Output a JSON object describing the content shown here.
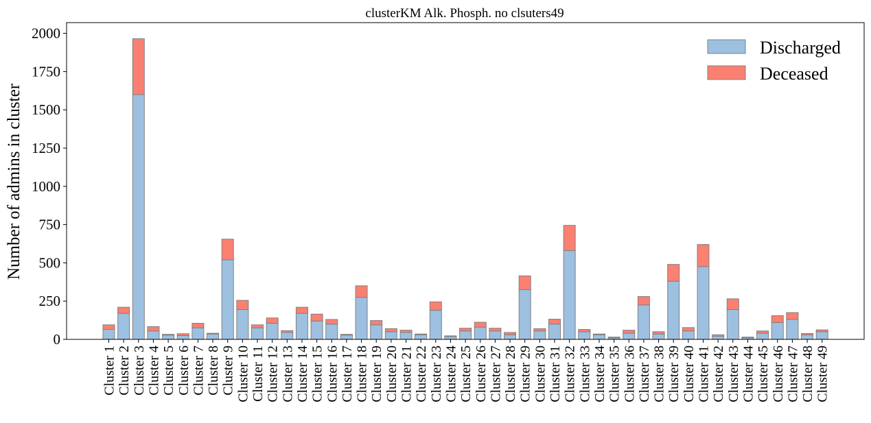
{
  "chart_data": {
    "type": "bar",
    "stacked": true,
    "title": "clusterKM Alk. Phosph. no clsuters49",
    "xlabel": "",
    "ylabel": "Number of admins in cluster",
    "ylim": [
      0,
      2070
    ],
    "yticks": [
      0,
      250,
      500,
      750,
      1000,
      1250,
      1500,
      1750,
      2000
    ],
    "grid": false,
    "legend_position": "top-right",
    "colors": {
      "Discharged": "#9dc0e0",
      "Deceased": "#fa8072",
      "edge": "#808080"
    },
    "categories": [
      "Cluster 1",
      "Cluster 2",
      "Cluster 3",
      "Cluster 4",
      "Cluster 5",
      "Cluster 6",
      "Cluster 7",
      "Cluster 8",
      "Cluster 9",
      "Cluster 10",
      "Cluster 11",
      "Cluster 12",
      "Cluster 13",
      "Cluster 14",
      "Cluster 15",
      "Cluster 16",
      "Cluster 17",
      "Cluster 18",
      "Cluster 19",
      "Cluster 20",
      "Cluster 21",
      "Cluster 22",
      "Cluster 23",
      "Cluster 24",
      "Cluster 25",
      "Cluster 26",
      "Cluster 27",
      "Cluster 28",
      "Cluster 29",
      "Cluster 30",
      "Cluster 31",
      "Cluster 32",
      "Cluster 33",
      "Cluster 34",
      "Cluster 35",
      "Cluster 36",
      "Cluster 37",
      "Cluster 38",
      "Cluster 39",
      "Cluster 40",
      "Cluster 41",
      "Cluster 42",
      "Cluster 43",
      "Cluster 44",
      "Cluster 45",
      "Cluster 46",
      "Cluster 47",
      "Cluster 48",
      "Cluster 49"
    ],
    "series": [
      {
        "name": "Discharged",
        "values": [
          65,
          170,
          1600,
          55,
          28,
          25,
          75,
          35,
          520,
          195,
          75,
          105,
          45,
          170,
          120,
          100,
          28,
          275,
          95,
          50,
          45,
          30,
          190,
          18,
          55,
          80,
          55,
          30,
          325,
          55,
          100,
          580,
          50,
          30,
          10,
          40,
          225,
          35,
          380,
          55,
          475,
          20,
          195,
          10,
          40,
          110,
          130,
          30,
          50
        ]
      },
      {
        "name": "Deceased",
        "values": [
          30,
          40,
          365,
          28,
          5,
          12,
          30,
          5,
          135,
          60,
          20,
          35,
          12,
          40,
          45,
          30,
          5,
          75,
          28,
          20,
          15,
          5,
          55,
          5,
          18,
          32,
          18,
          15,
          90,
          15,
          32,
          165,
          15,
          5,
          5,
          20,
          55,
          15,
          110,
          22,
          145,
          10,
          70,
          5,
          15,
          45,
          45,
          8,
          12
        ]
      }
    ]
  }
}
